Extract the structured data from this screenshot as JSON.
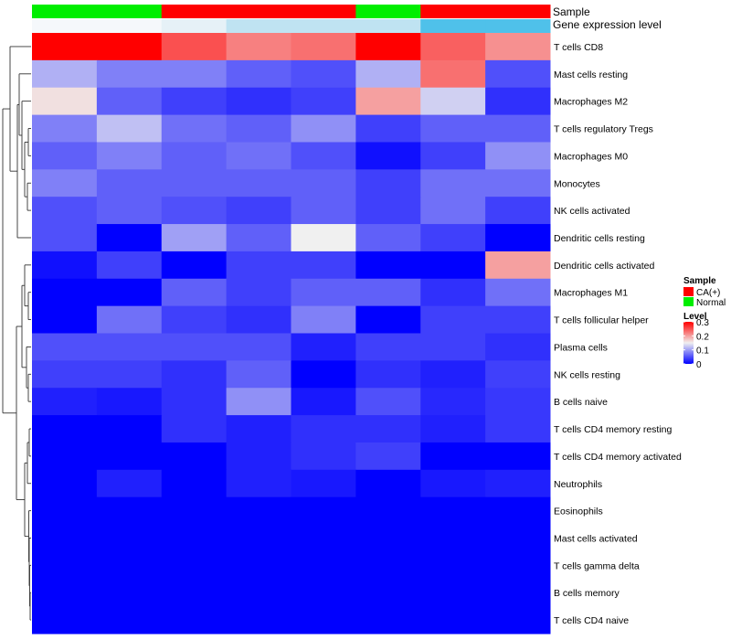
{
  "chart_data": {
    "type": "heatmap",
    "annotation_tracks": {
      "sample": {
        "label": "Sample",
        "values": [
          "Normal",
          "Normal",
          "CA(+)",
          "CA(+)",
          "CA(+)",
          "Normal",
          "CA(+)",
          "CA(+)"
        ]
      },
      "gene_expression_level": {
        "label": "Gene expression level",
        "values": [
          "low",
          "low",
          "mid",
          "mid-high",
          "mid-high",
          "mid-high",
          "high",
          "high"
        ]
      }
    },
    "rows": [
      "T cells CD8",
      "Mast cells resting",
      "Macrophages M2",
      "T cells regulatory  Tregs",
      "Macrophages M0",
      "Monocytes",
      "NK cells activated",
      "Dendritic cells resting",
      "Dendritic cells activated",
      "Macrophages M1",
      "T cells follicular helper",
      "Plasma cells",
      "NK cells resting",
      "B cells naive",
      "T cells CD4 memory resting",
      "T cells CD4 memory activated",
      "Neutrophils",
      "Eosinophils",
      "Mast cells activated",
      "T cells gamma delta",
      "B cells memory",
      "T cells CD4 naive"
    ],
    "values": [
      [
        0.3,
        0.3,
        0.25,
        0.22,
        0.23,
        0.3,
        0.24,
        0.21
      ],
      [
        0.11,
        0.08,
        0.08,
        0.06,
        0.05,
        0.11,
        0.23,
        0.05
      ],
      [
        0.16,
        0.06,
        0.04,
        0.03,
        0.04,
        0.2,
        0.13,
        0.03
      ],
      [
        0.08,
        0.12,
        0.07,
        0.06,
        0.09,
        0.04,
        0.06,
        0.06
      ],
      [
        0.06,
        0.08,
        0.06,
        0.07,
        0.05,
        0.01,
        0.04,
        0.09
      ],
      [
        0.08,
        0.06,
        0.06,
        0.06,
        0.06,
        0.04,
        0.07,
        0.07
      ],
      [
        0.05,
        0.06,
        0.05,
        0.04,
        0.06,
        0.04,
        0.07,
        0.04
      ],
      [
        0.05,
        0.0,
        0.1,
        0.06,
        0.15,
        0.06,
        0.04,
        0.0
      ],
      [
        0.01,
        0.04,
        0.0,
        0.04,
        0.04,
        0.0,
        0.0,
        0.2
      ],
      [
        0.0,
        0.0,
        0.06,
        0.04,
        0.06,
        0.06,
        0.03,
        0.07
      ],
      [
        0.0,
        0.07,
        0.04,
        0.03,
        0.08,
        0.0,
        0.04,
        0.04
      ],
      [
        0.05,
        0.05,
        0.05,
        0.05,
        0.02,
        0.04,
        0.04,
        0.03
      ],
      [
        0.04,
        0.04,
        0.03,
        0.06,
        0.0,
        0.03,
        0.02,
        0.04
      ],
      [
        0.02,
        0.015,
        0.03,
        0.09,
        0.015,
        0.05,
        0.025,
        0.035
      ],
      [
        0.0,
        0.0,
        0.03,
        0.02,
        0.03,
        0.03,
        0.02,
        0.035
      ],
      [
        0.0,
        0.0,
        0.0,
        0.02,
        0.03,
        0.04,
        0.0,
        0.0
      ],
      [
        0.0,
        0.02,
        0.0,
        0.02,
        0.015,
        0.0,
        0.015,
        0.02
      ],
      [
        0.0,
        0.0,
        0.0,
        0.0,
        0.0,
        0.0,
        0.0,
        0.0
      ],
      [
        0.0,
        0.0,
        0.0,
        0.0,
        0.0,
        0.0,
        0.0,
        0.0
      ],
      [
        0.0,
        0.0,
        0.0,
        0.0,
        0.0,
        0.0,
        0.0,
        0.0
      ],
      [
        0.0,
        0.0,
        0.0,
        0.0,
        0.0,
        0.0,
        0.0,
        0.0
      ],
      [
        0.0,
        0.0,
        0.0,
        0.0,
        0.0,
        0.0,
        0.0,
        0.0
      ]
    ],
    "color_scale": {
      "min": 0,
      "mid": 0.15,
      "max": 0.3,
      "low_color": "#0000ff",
      "mid_color": "#f0f0f0",
      "high_color": "#ff0000"
    },
    "row_dendrogram": true,
    "legend": {
      "position": "right",
      "sample": {
        "title": "Sample",
        "items": [
          {
            "label": "CA(+)",
            "color": "#ff0000"
          },
          {
            "label": "Normal",
            "color": "#00ee00"
          }
        ]
      },
      "level": {
        "title": "Level",
        "ticks": [
          "0.3",
          "0.2",
          "0.1",
          "0"
        ],
        "tick_values": [
          0.3,
          0.2,
          0.1,
          0
        ]
      }
    },
    "sample_colors": {
      "CA(+)": "#ff0000",
      "Normal": "#00ee00"
    },
    "expression_colors": {
      "low": "#f5f8fb",
      "mid": "#e6f1f7",
      "mid-high": "#bfe3f2",
      "high": "#4fc1ea"
    }
  }
}
